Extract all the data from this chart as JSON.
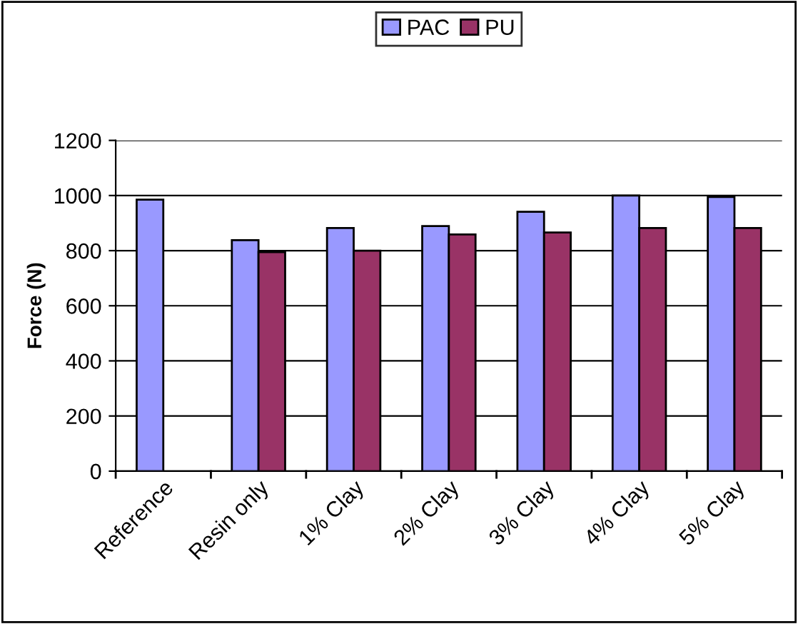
{
  "chart_data": {
    "type": "bar",
    "ylabel": "Force (N)",
    "categories": [
      "Reference",
      "Resin only",
      "1% Clay",
      "2% Clay",
      "3% Clay",
      "4% Clay",
      "5% Clay"
    ],
    "series": [
      {
        "name": "PAC",
        "color": "#9999ff",
        "values": [
          985,
          838,
          882,
          889,
          941,
          1000,
          995
        ]
      },
      {
        "name": "PU",
        "color": "#993366",
        "values": [
          null,
          795,
          800,
          859,
          866,
          882,
          882
        ]
      }
    ],
    "ylim": [
      0,
      1200
    ],
    "yticks": [
      0,
      200,
      400,
      600,
      800,
      1000,
      1200
    ],
    "grid": "y",
    "legend": "top"
  }
}
